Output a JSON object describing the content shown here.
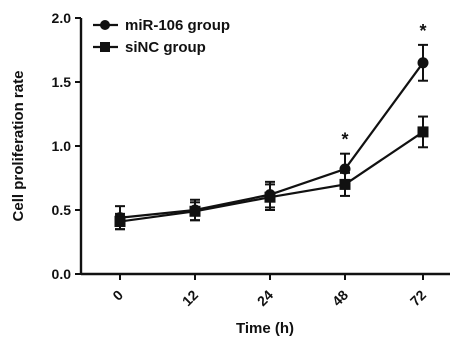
{
  "chart_data": {
    "type": "line",
    "xlabel": "Time (h)",
    "ylabel": "Cell proliferation rate",
    "categories": [
      "0",
      "12",
      "24",
      "48",
      "72"
    ],
    "ylim": [
      0.0,
      2.0
    ],
    "yticks": [
      "0.0",
      "0.5",
      "1.0",
      "1.5",
      "2.0"
    ],
    "legend_position": "top-left",
    "series": [
      {
        "name": "miR-106 group",
        "marker": "circle",
        "values": [
          0.44,
          0.5,
          0.62,
          0.82,
          1.65
        ],
        "errors": [
          0.09,
          0.08,
          0.1,
          0.12,
          0.14
        ]
      },
      {
        "name": "siNC group",
        "marker": "square",
        "values": [
          0.41,
          0.49,
          0.6,
          0.7,
          1.11
        ],
        "errors": [
          0.06,
          0.07,
          0.1,
          0.09,
          0.12
        ]
      }
    ],
    "annotations": [
      {
        "category": "48",
        "text": "*"
      },
      {
        "category": "72",
        "text": "*"
      }
    ],
    "grid": false
  }
}
